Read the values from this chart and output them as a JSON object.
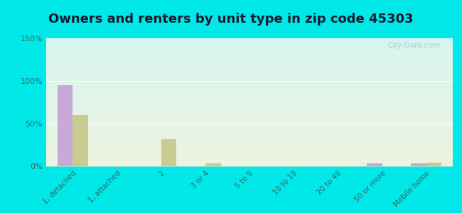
{
  "title": "Owners and renters by unit type in zip code 45303",
  "categories": [
    "1, detached",
    "1, attached",
    "2",
    "3 or 4",
    "5 to 9",
    "10 to 19",
    "20 to 49",
    "50 or more",
    "Mobile home"
  ],
  "owner_values": [
    95,
    0,
    0,
    0,
    0,
    0,
    0,
    3,
    3
  ],
  "renter_values": [
    60,
    0,
    32,
    3,
    0,
    0,
    0,
    0,
    4
  ],
  "owner_color": "#c8a8d8",
  "renter_color": "#c8cc90",
  "bg_top_color": "#d8f4f0",
  "bg_bottom_color": "#ecf5e0",
  "outer_bg": "#00e8e8",
  "ylim": [
    0,
    150
  ],
  "yticks": [
    0,
    50,
    100,
    150
  ],
  "ytick_labels": [
    "0%",
    "50%",
    "100%",
    "150%"
  ],
  "watermark": "City-Data.com",
  "title_fontsize": 13,
  "bar_width": 0.35,
  "title_color": "#1a1a2e"
}
